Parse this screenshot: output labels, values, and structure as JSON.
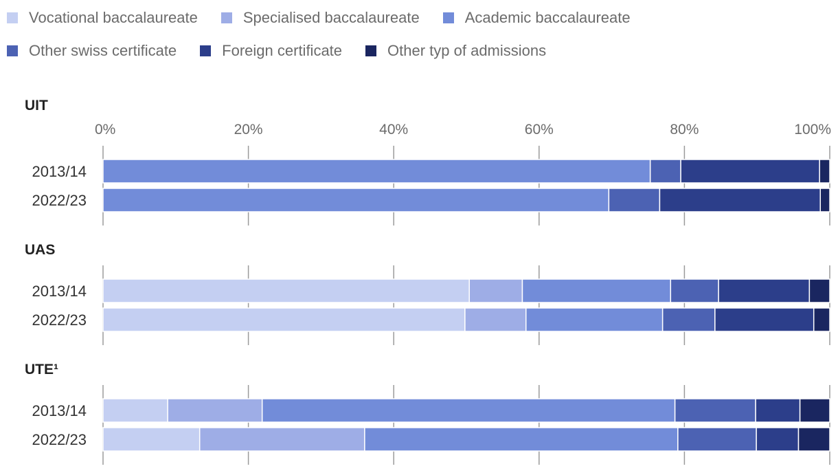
{
  "chart_data": {
    "type": "bar",
    "orientation": "horizontal",
    "stacked": true,
    "normalized": true,
    "xlim": [
      0,
      100
    ],
    "ticks": [
      "0%",
      "20%",
      "40%",
      "60%",
      "80%",
      "100%"
    ],
    "legend_position": "top-left",
    "series": [
      {
        "name": "Vocational baccalaureate",
        "color": "#c4cff2"
      },
      {
        "name": "Specialised baccalaureate",
        "color": "#9eade6"
      },
      {
        "name": "Academic baccalaureate",
        "color": "#728cd9"
      },
      {
        "name": "Other swiss certificate",
        "color": "#4c62b3"
      },
      {
        "name": "Foreign certificate",
        "color": "#2c3e8a"
      },
      {
        "name": "Other typ of admissions",
        "color": "#1a2660"
      }
    ],
    "groups": [
      {
        "title": "UIT",
        "rows": [
          {
            "label": "2013/14",
            "values": [
              0,
              0,
              75.3,
              4.2,
              19.1,
              1.4
            ]
          },
          {
            "label": "2022/23",
            "values": [
              0,
              0,
              69.6,
              7.0,
              22.1,
              1.3
            ]
          }
        ]
      },
      {
        "title": "UAS",
        "rows": [
          {
            "label": "2013/14",
            "values": [
              50.4,
              7.3,
              20.4,
              6.6,
              12.5,
              2.8
            ]
          },
          {
            "label": "2022/23",
            "values": [
              49.8,
              8.4,
              18.8,
              7.2,
              13.6,
              2.2
            ]
          }
        ]
      },
      {
        "title": "UTE¹",
        "rows": [
          {
            "label": "2013/14",
            "values": [
              8.9,
              13.0,
              56.8,
              11.1,
              6.1,
              4.1
            ]
          },
          {
            "label": "2022/23",
            "values": [
              13.3,
              22.7,
              43.1,
              10.8,
              5.8,
              4.3
            ]
          }
        ]
      }
    ]
  }
}
